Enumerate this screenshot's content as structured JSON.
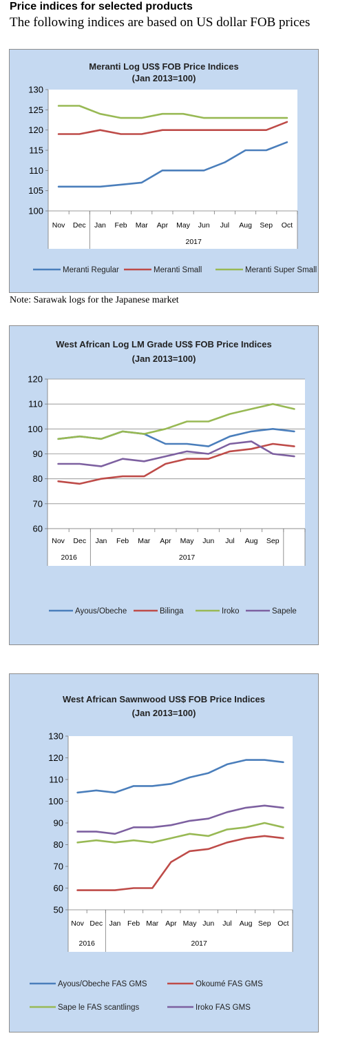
{
  "header": {
    "title": "Price indices for selected products",
    "subtitle": "The following indices are based on US dollar FOB prices"
  },
  "note": "Note: Sarawak logs for the Japanese market",
  "chart_data": [
    {
      "type": "line",
      "title": "Meranti Log US$ FOB Price Indices",
      "subtitle": "(Jan 2013=100)",
      "categories": [
        "Nov",
        "Dec",
        "Jan",
        "Feb",
        "Mar",
        "Apr",
        "May",
        "Jun",
        "Jul",
        "Aug",
        "Sep",
        "Oct"
      ],
      "groups": [
        {
          "label": "",
          "span": 2
        },
        {
          "label": "2017",
          "span": 10
        }
      ],
      "ylim": [
        100,
        130
      ],
      "yticks": [
        100,
        105,
        110,
        115,
        120,
        125,
        130
      ],
      "gridlines": false,
      "legend": "bottom",
      "series": [
        {
          "name": "Meranti Regular",
          "color": "#4a7ebb",
          "values": [
            106,
            106,
            106,
            106.5,
            107,
            110,
            110,
            110,
            112,
            115,
            115,
            117
          ]
        },
        {
          "name": "Meranti Small",
          "color": "#be4b48",
          "values": [
            119,
            119,
            120,
            119,
            119,
            120,
            120,
            120,
            120,
            120,
            120,
            122
          ]
        },
        {
          "name": "Meranti Super Small",
          "color": "#98b954",
          "values": [
            126,
            126,
            124,
            123,
            123,
            124,
            124,
            123,
            123,
            123,
            123,
            123
          ]
        }
      ]
    },
    {
      "type": "line",
      "title": "West African Log LM Grade US$ FOB Price Indices",
      "subtitle": "(Jan 2013=100)",
      "categories": [
        "Nov",
        "Dec",
        "Jan",
        "Feb",
        "Mar",
        "Apr",
        "May",
        "Jun",
        "Jul",
        "Aug",
        "Sep",
        ""
      ],
      "groups": [
        {
          "label": "2016",
          "span": 2
        },
        {
          "label": "2017",
          "span": 9
        },
        {
          "label": "",
          "span": 1
        }
      ],
      "ylim": [
        60,
        120
      ],
      "yticks": [
        60,
        70,
        80,
        90,
        100,
        110,
        120
      ],
      "gridlines": true,
      "legend": "bottom",
      "series": [
        {
          "name": "Ayous/Obeche",
          "color": "#4a7ebb",
          "values": [
            96,
            97,
            96,
            99,
            98,
            94,
            94,
            93,
            97,
            99,
            100,
            99
          ]
        },
        {
          "name": "Bilinga",
          "color": "#be4b48",
          "values": [
            79,
            78,
            80,
            81,
            81,
            86,
            88,
            88,
            91,
            92,
            94,
            93
          ]
        },
        {
          "name": "Iroko",
          "color": "#98b954",
          "values": [
            96,
            97,
            96,
            99,
            98,
            100,
            103,
            103,
            106,
            108,
            110,
            108
          ]
        },
        {
          "name": "Sapele",
          "color": "#7d60a0",
          "values": [
            86,
            86,
            85,
            88,
            87,
            89,
            91,
            90,
            94,
            95,
            90,
            89
          ]
        }
      ]
    },
    {
      "type": "line",
      "title": "West African Sawnwood US$ FOB Price Indices",
      "subtitle": "(Jan 2013=100)",
      "categories": [
        "Nov",
        "Dec",
        "Jan",
        "Feb",
        "Mar",
        "Apr",
        "May",
        "Jun",
        "Jul",
        "Aug",
        "Sep",
        "Oct"
      ],
      "groups": [
        {
          "label": "2016",
          "span": 2
        },
        {
          "label": "2017",
          "span": 10
        }
      ],
      "ylim": [
        50,
        130
      ],
      "yticks": [
        50,
        60,
        70,
        80,
        90,
        100,
        110,
        120,
        130
      ],
      "gridlines": false,
      "legend": "bottom",
      "series": [
        {
          "name": "Ayous/Obeche FAS GMS",
          "color": "#4a7ebb",
          "values": [
            104,
            105,
            104,
            107,
            107,
            108,
            111,
            113,
            117,
            119,
            119,
            118
          ]
        },
        {
          "name": "Okoumé  FAS GMS",
          "color": "#be4b48",
          "values": [
            59,
            59,
            59,
            60,
            60,
            72,
            77,
            78,
            81,
            83,
            84,
            83
          ]
        },
        {
          "name": "Sape le FAS scantlings",
          "color": "#98b954",
          "values": [
            81,
            82,
            81,
            82,
            81,
            83,
            85,
            84,
            87,
            88,
            90,
            88
          ]
        },
        {
          "name": "Iroko FAS GMS",
          "color": "#7d60a0",
          "values": [
            86,
            86,
            85,
            88,
            88,
            89,
            91,
            92,
            95,
            97,
            98,
            97
          ]
        }
      ]
    }
  ]
}
